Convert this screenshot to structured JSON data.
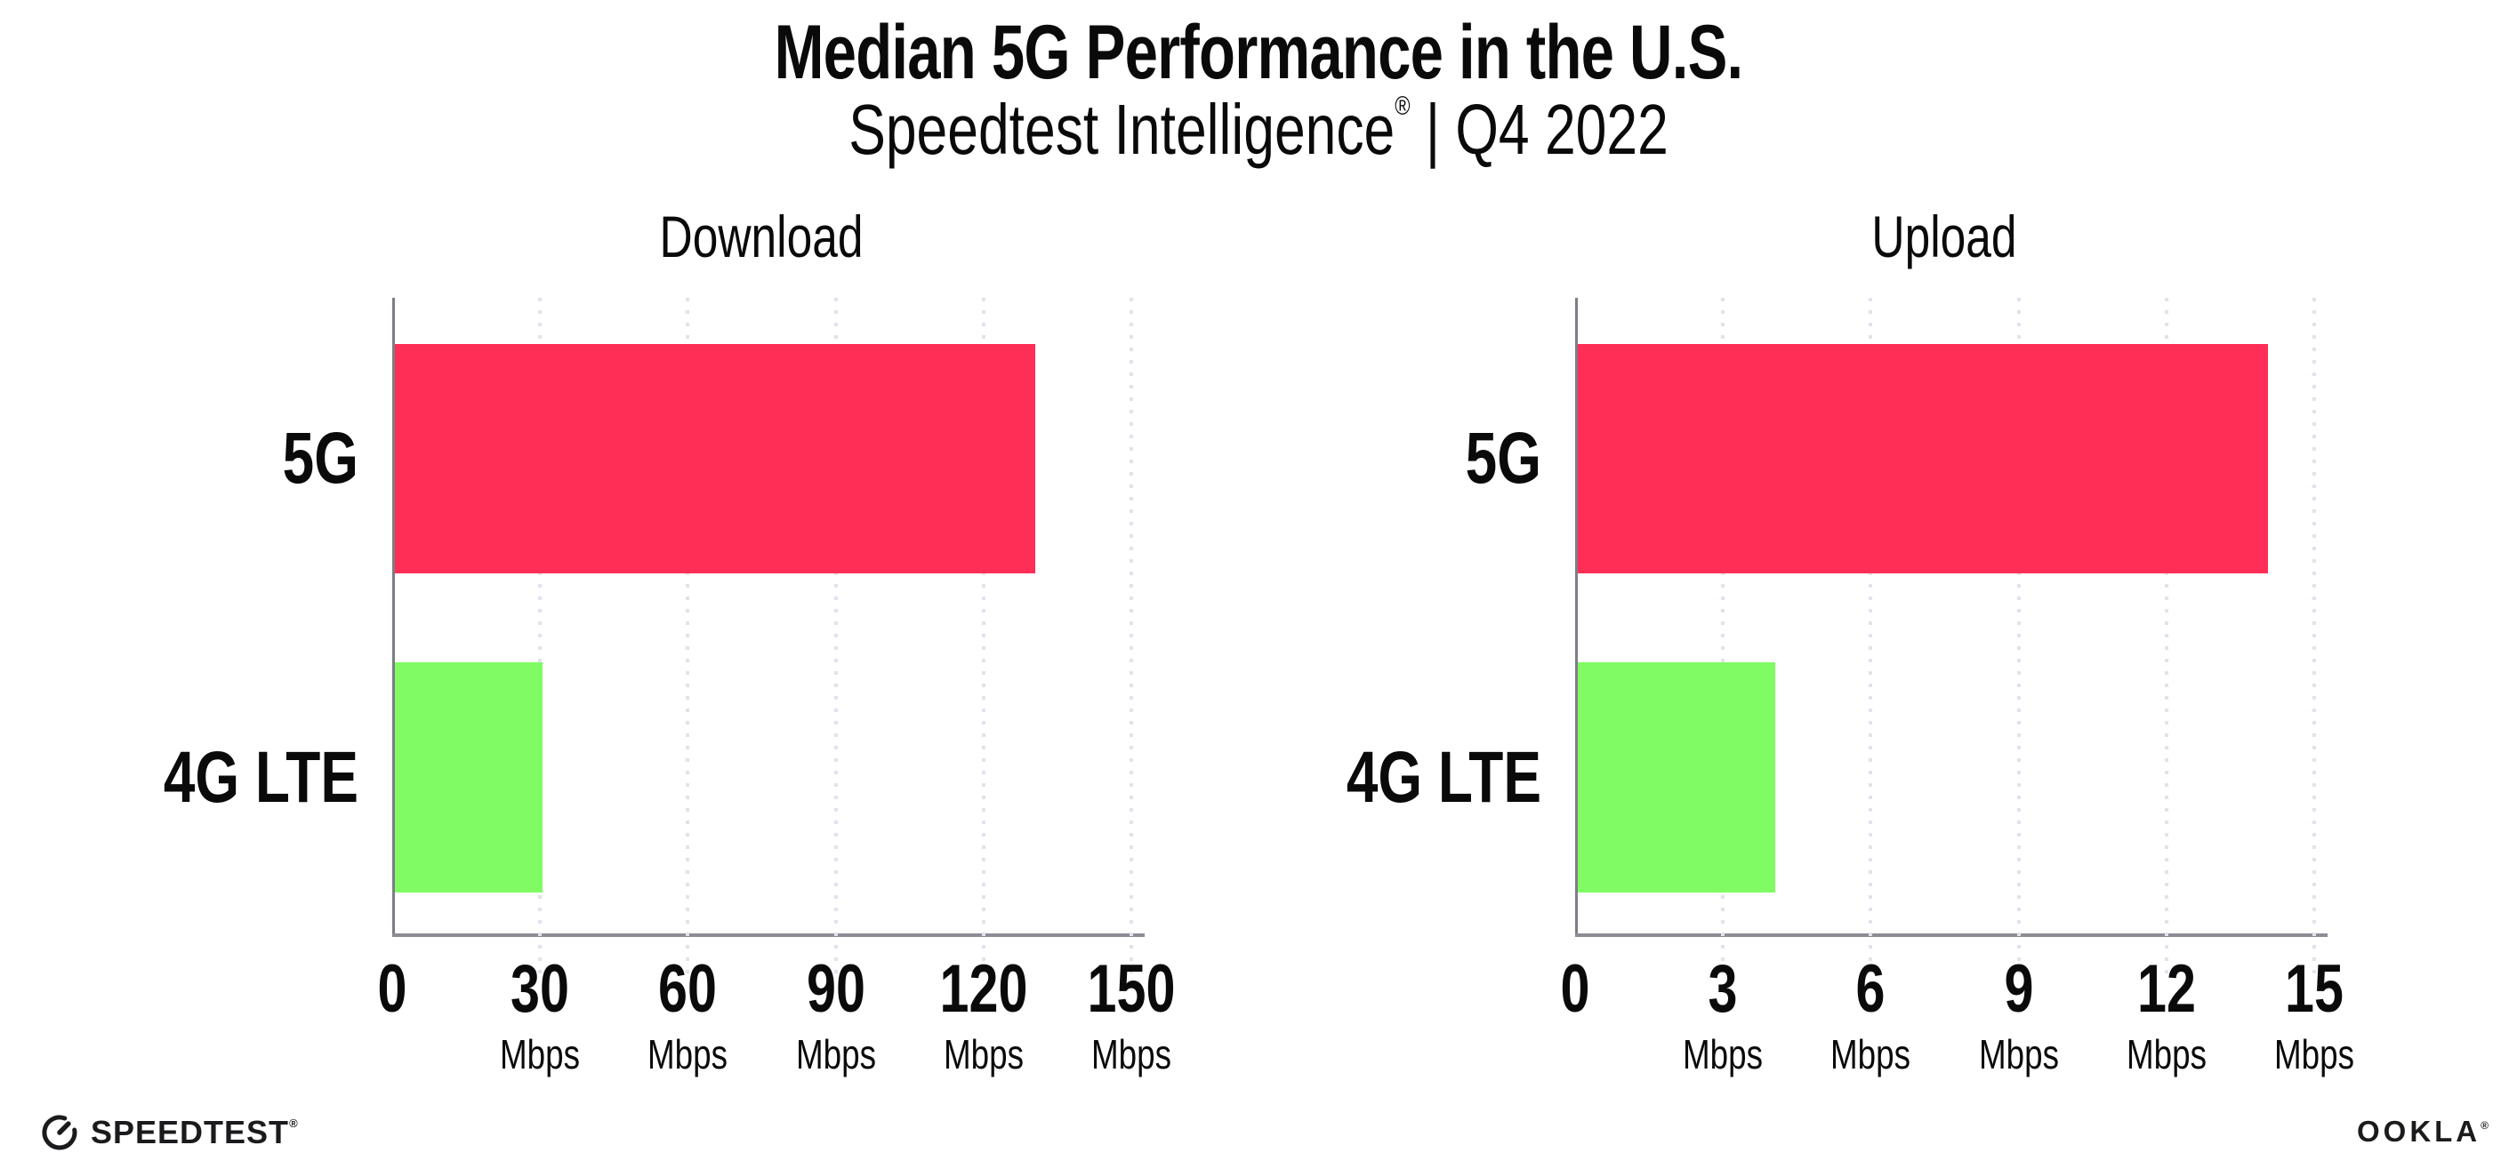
{
  "header": {
    "title": "Median 5G Performance in the U.S.",
    "subtitle_brand": "Speedtest Intelligence",
    "subtitle_reg": "®",
    "subtitle_rest": " | Q4 2022"
  },
  "colors": {
    "bar_5g": "#ff2e56",
    "bar_4g_lte": "#80fb63",
    "axis_line": "#8c8c94",
    "gridline": "#e2e2ee",
    "text": "#0a0a0a"
  },
  "chart_data": [
    {
      "type": "bar",
      "orientation": "horizontal",
      "title": "Download",
      "categories": [
        "5G",
        "4G LTE"
      ],
      "values": [
        130,
        30
      ],
      "unit": "Mbps",
      "xlim": [
        0,
        150
      ],
      "xticks": [
        0,
        30,
        60,
        90,
        120,
        150
      ],
      "grid": "dotted-vertical",
      "legend": "none",
      "bar_colors": [
        "#ff2e56",
        "#80fb63"
      ]
    },
    {
      "type": "bar",
      "orientation": "horizontal",
      "title": "Upload",
      "categories": [
        "5G",
        "4G LTE"
      ],
      "values": [
        14,
        4
      ],
      "unit": "Mbps",
      "xlim": [
        0,
        15
      ],
      "xticks": [
        0,
        3,
        6,
        9,
        12,
        15
      ],
      "grid": "dotted-vertical",
      "legend": "none",
      "bar_colors": [
        "#ff2e56",
        "#80fb63"
      ]
    }
  ],
  "footer": {
    "speedtest_label": "SPEEDTEST",
    "speedtest_reg": "®",
    "ookla_label": "OOKLA",
    "ookla_reg": "®"
  }
}
